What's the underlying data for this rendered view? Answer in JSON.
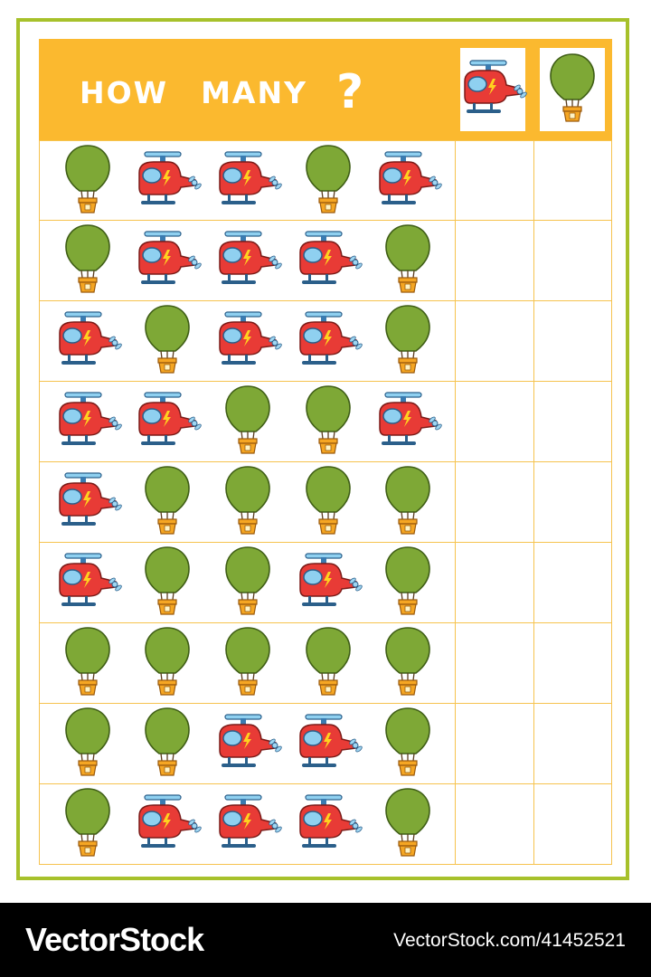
{
  "header": {
    "word1": "HOW",
    "word2": "MANY",
    "question_mark": "?",
    "key_items": [
      "helicopter-icon",
      "balloon-icon"
    ]
  },
  "colors": {
    "frame": "#a7c12b",
    "header": "#fbb92f",
    "grid_line": "#f6c34e",
    "helicopter_body": "#e83b36",
    "helicopter_window": "#8fd0f0",
    "balloon": "#7ea836",
    "basket": "#f5a623"
  },
  "rows": [
    [
      "balloon",
      "helicopter",
      "helicopter",
      "balloon",
      "helicopter"
    ],
    [
      "balloon",
      "helicopter",
      "helicopter",
      "helicopter",
      "balloon"
    ],
    [
      "helicopter",
      "balloon",
      "helicopter",
      "helicopter",
      "balloon"
    ],
    [
      "helicopter",
      "helicopter",
      "balloon",
      "balloon",
      "helicopter"
    ],
    [
      "helicopter",
      "balloon",
      "balloon",
      "balloon",
      "balloon"
    ],
    [
      "helicopter",
      "balloon",
      "balloon",
      "helicopter",
      "balloon"
    ],
    [
      "balloon",
      "balloon",
      "balloon",
      "balloon",
      "balloon"
    ],
    [
      "balloon",
      "balloon",
      "helicopter",
      "helicopter",
      "balloon"
    ],
    [
      "balloon",
      "helicopter",
      "helicopter",
      "helicopter",
      "balloon"
    ]
  ],
  "footer": {
    "brand": "VectorStock",
    "url": "VectorStock.com/41452521"
  }
}
